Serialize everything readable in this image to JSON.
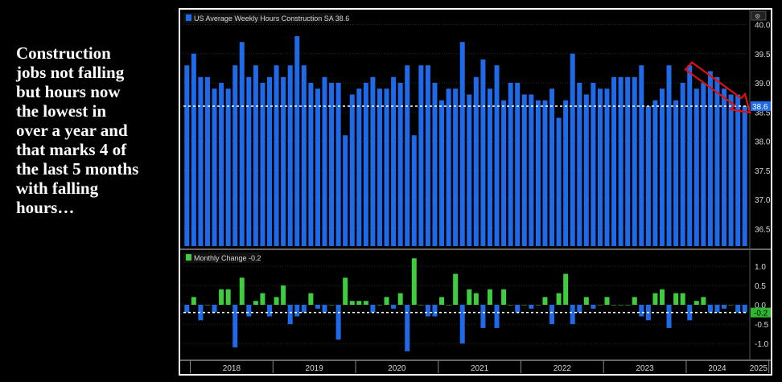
{
  "annotation": {
    "lines": [
      "Construction",
      "jobs not falling",
      "but hours now",
      "the lowest in",
      "over a year and",
      "that marks 4 of",
      "the last 5 months",
      "with falling",
      "hours…"
    ]
  },
  "colors": {
    "hours_bar": "#1f6ae8",
    "change_up": "#3fcc3f",
    "change_down": "#1f6ae8",
    "arrow": "#e01010",
    "grid": "#2a2a2a",
    "axis_text": "#d8d8d8"
  },
  "chart_data": [
    {
      "type": "bar",
      "legend": "US Average Weekly Hours Construction SA 38.6",
      "last_value_label": "38.6",
      "reference_line": 38.6,
      "ylim": [
        36.2,
        40.2
      ],
      "yticks": [
        36.5,
        37.0,
        37.5,
        38.0,
        38.5,
        39.0,
        39.5,
        40.0
      ],
      "ytick_labels": [
        "36.5",
        "37.0",
        "37.5",
        "38.0",
        "38.5",
        "39.0",
        "39.5",
        "40.0"
      ],
      "start": "2017-12",
      "values": [
        39.3,
        39.5,
        39.1,
        39.1,
        38.9,
        39.0,
        38.9,
        39.3,
        39.7,
        39.1,
        39.3,
        39.0,
        39.1,
        39.3,
        39.1,
        39.3,
        39.8,
        39.3,
        39.0,
        38.9,
        39.1,
        39.0,
        39.0,
        38.1,
        38.8,
        38.9,
        39.0,
        39.1,
        38.9,
        38.9,
        39.1,
        39.0,
        39.3,
        38.1,
        39.3,
        39.3,
        39.0,
        38.7,
        38.9,
        38.9,
        39.7,
        38.8,
        39.1,
        39.4,
        38.9,
        39.3,
        38.7,
        39.0,
        39.0,
        38.8,
        38.8,
        38.7,
        38.7,
        38.9,
        38.4,
        38.7,
        39.5,
        39.0,
        38.8,
        39.0,
        38.9,
        38.9,
        39.1,
        39.1,
        39.1,
        39.1,
        39.3,
        38.6,
        38.7,
        38.9,
        39.3,
        38.7,
        39.0,
        39.3,
        38.9,
        39.0,
        39.2,
        39.1,
        38.9,
        38.8,
        38.8,
        38.6
      ]
    },
    {
      "type": "bar",
      "legend": "Monthly Change -0.2",
      "last_value_label": "-0.2",
      "reference_line": -0.2,
      "ylim": [
        -1.35,
        1.35
      ],
      "yticks": [
        -1.0,
        -0.5,
        0.0,
        0.5,
        1.0
      ],
      "ytick_labels": [
        "-1.0",
        "-0.5",
        "0.0",
        "0.5",
        "1.0"
      ],
      "start": "2017-12",
      "values": [
        -0.2,
        0.2,
        -0.4,
        0.0,
        -0.2,
        0.4,
        0.4,
        -1.1,
        0.7,
        -0.3,
        0.1,
        0.3,
        -0.3,
        0.2,
        0.5,
        -0.5,
        -0.3,
        -0.2,
        0.3,
        -0.1,
        -0.2,
        0.0,
        -0.9,
        0.7,
        0.1,
        0.1,
        0.1,
        -0.2,
        0.0,
        0.2,
        -0.1,
        0.3,
        -1.2,
        1.2,
        0.0,
        -0.3,
        -0.3,
        0.2,
        0.0,
        0.8,
        -1.0,
        0.4,
        0.3,
        -0.6,
        0.4,
        -0.6,
        0.4,
        0.0,
        -0.2,
        0.0,
        -0.1,
        0.0,
        0.2,
        -0.5,
        0.3,
        0.8,
        -0.5,
        -0.2,
        0.2,
        -0.1,
        0.0,
        0.2,
        0.0,
        0.0,
        0.0,
        0.2,
        -0.3,
        -0.4,
        0.3,
        0.4,
        -0.6,
        0.3,
        0.3,
        -0.4,
        0.1,
        0.2,
        -0.2,
        -0.2,
        -0.1,
        0.0,
        -0.2,
        -0.2
      ]
    }
  ],
  "x_axis": {
    "years": [
      "2018",
      "2019",
      "2020",
      "2021",
      "2022",
      "2023",
      "2024",
      "2025"
    ],
    "first_january_index": 1,
    "months_per_year": 12
  },
  "window_control": {
    "label": "⚙"
  }
}
